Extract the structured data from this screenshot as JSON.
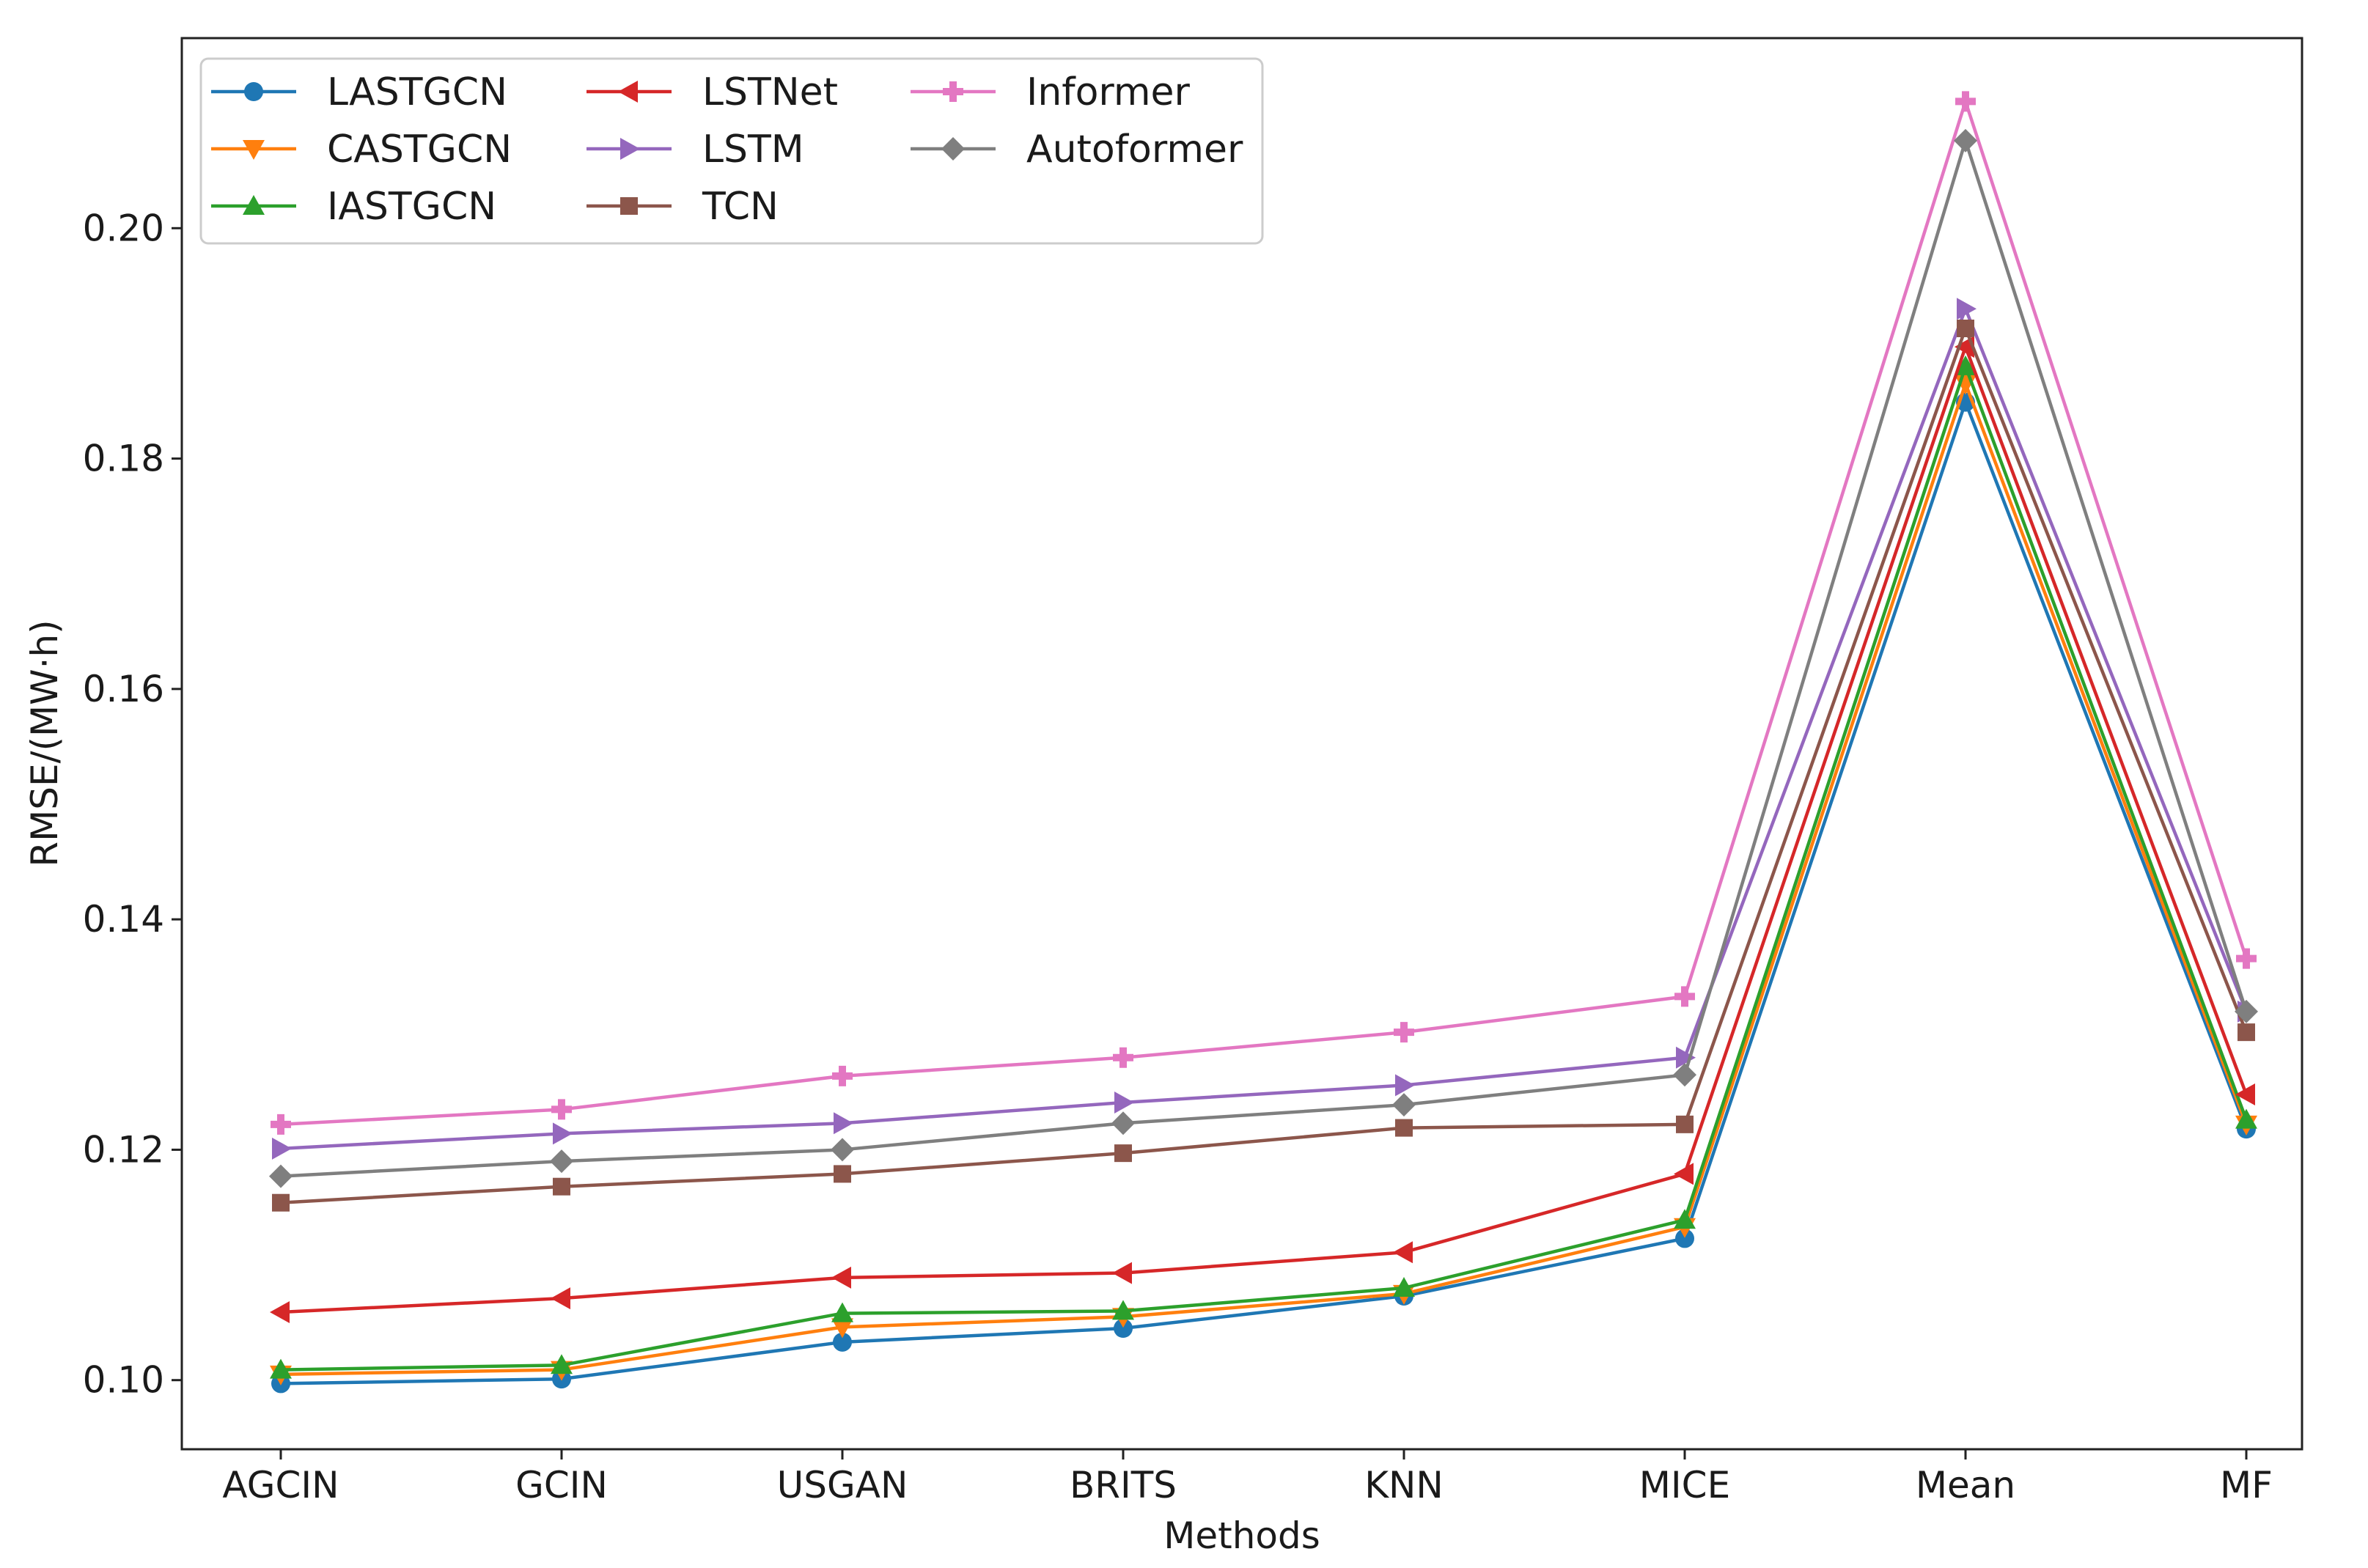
{
  "chart_data": {
    "type": "line",
    "title": "",
    "xlabel": "Methods",
    "ylabel": "RMSE/(MW·h)",
    "categories": [
      "AGCIN",
      "GCIN",
      "USGAN",
      "BRITS",
      "KNN",
      "MICE",
      "Mean",
      "MF"
    ],
    "ylim": [
      0.094,
      0.2165
    ],
    "yticks": [
      0.1,
      0.12,
      0.14,
      0.16,
      0.18,
      0.2
    ],
    "ytick_labels": [
      "0.10",
      "0.12",
      "0.14",
      "0.16",
      "0.18",
      "0.20"
    ],
    "grid": false,
    "legend_position": "top-left",
    "legend_columns": 3,
    "series": [
      {
        "name": "LASTGCN",
        "color": "#1f77b4",
        "marker": "circle",
        "values": [
          0.0997,
          0.1001,
          0.1033,
          0.1045,
          0.1073,
          0.1123,
          0.1849,
          0.1218
        ]
      },
      {
        "name": "CASTGCN",
        "color": "#ff7f0e",
        "marker": "triangle-down",
        "values": [
          0.1005,
          0.1009,
          0.1046,
          0.1055,
          0.1075,
          0.1133,
          0.1865,
          0.1222
        ]
      },
      {
        "name": "IASTGCN",
        "color": "#2ca02c",
        "marker": "triangle-up",
        "values": [
          0.1009,
          0.1013,
          0.1058,
          0.106,
          0.108,
          0.1139,
          0.188,
          0.1226
        ]
      },
      {
        "name": "LSTNet",
        "color": "#d62728",
        "marker": "triangle-left",
        "values": [
          0.1059,
          0.1071,
          0.1089,
          0.1093,
          0.1111,
          0.1179,
          0.1897,
          0.1248
        ]
      },
      {
        "name": "LSTM",
        "color": "#9467bd",
        "marker": "triangle-right",
        "values": [
          0.1201,
          0.1214,
          0.1223,
          0.1241,
          0.1256,
          0.128,
          0.193,
          0.132
        ]
      },
      {
        "name": "TCN",
        "color": "#8c564b",
        "marker": "square",
        "values": [
          0.1154,
          0.1168,
          0.1179,
          0.1197,
          0.1219,
          0.1222,
          0.1913,
          0.1302
        ]
      },
      {
        "name": "Informer",
        "color": "#e377c2",
        "marker": "plus",
        "values": [
          0.1222,
          0.1235,
          0.1264,
          0.128,
          0.1302,
          0.1333,
          0.211,
          0.1366
        ]
      },
      {
        "name": "Autoformer",
        "color": "#7f7f7f",
        "marker": "diamond",
        "values": [
          0.1177,
          0.119,
          0.12,
          0.1223,
          0.1239,
          0.1265,
          0.2076,
          0.132
        ]
      }
    ]
  }
}
